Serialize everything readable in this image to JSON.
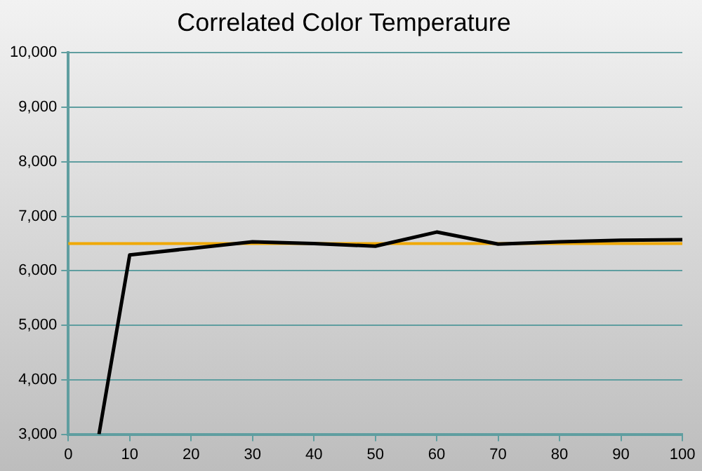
{
  "chart_data": {
    "type": "line",
    "title": "Correlated Color Temperature",
    "x": [
      5,
      10,
      20,
      30,
      40,
      50,
      60,
      70,
      80,
      90,
      100
    ],
    "series": [
      {
        "color": "#000000",
        "values": [
          3000,
          6290,
          6410,
          6530,
          6500,
          6450,
          6710,
          6490,
          6530,
          6560,
          6570
        ]
      }
    ],
    "xlim": [
      0,
      100
    ],
    "xticks": [
      0,
      10,
      20,
      30,
      40,
      50,
      60,
      70,
      80,
      90,
      100
    ],
    "ylim": [
      3000,
      10000
    ],
    "yticks": [
      {
        "value": 3000,
        "label": "3,000"
      },
      {
        "value": 4000,
        "label": "4,000"
      },
      {
        "value": 5000,
        "label": "5,000"
      },
      {
        "value": 6000,
        "label": "6,000"
      },
      {
        "value": 7000,
        "label": "7,000"
      },
      {
        "value": 8000,
        "label": "8,000"
      },
      {
        "value": 9000,
        "label": "9,000"
      },
      {
        "value": 10000,
        "label": "10,000"
      }
    ],
    "ref_lines": [
      {
        "axis": "y",
        "value": 6500,
        "color": "#f0a800"
      }
    ],
    "grid": "y",
    "legend": false,
    "marker": "none",
    "line_style": "solid"
  }
}
